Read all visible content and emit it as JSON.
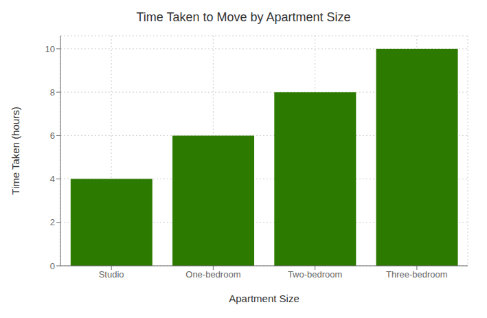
{
  "chart_data": {
    "type": "bar",
    "title": "Time Taken to Move by Apartment Size",
    "xlabel": "Apartment Size",
    "ylabel": "Time Taken (hours)",
    "categories": [
      "Studio",
      "One-bedroom",
      "Two-bedroom",
      "Three-bedroom"
    ],
    "values": [
      4,
      6,
      8,
      10
    ],
    "color": "#2d7a00",
    "ylim": [
      0,
      10.6
    ],
    "yticks": [
      0,
      2,
      4,
      6,
      8,
      10
    ],
    "grid": true
  }
}
